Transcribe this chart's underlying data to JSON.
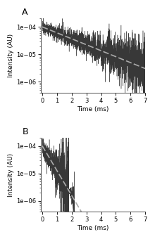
{
  "panel_A": {
    "label": "A",
    "tau_decay": 2.0,
    "tau_fit": 2.0,
    "t_max": 7.0,
    "noise_std": 0.25,
    "amplitude": 0.0001,
    "ylim": [
      4e-07,
      0.0002
    ],
    "xlim": [
      -0.1,
      7
    ],
    "xticks": [
      0,
      1,
      2,
      3,
      4,
      5,
      6,
      7
    ],
    "yticks": [
      1e-06,
      1e-05,
      0.0001
    ],
    "ylabel": "Intensity (AU)",
    "xlabel": "Time (ms)",
    "data_color": "#222222",
    "fit_color": "#aaaaaa",
    "n_points": 2000
  },
  "panel_B": {
    "label": "B",
    "tau_decay": 0.48,
    "tau_fit": 0.48,
    "t_max": 7.0,
    "noise_std": 0.35,
    "amplitude": 0.0001,
    "ylim": [
      4e-07,
      0.0002
    ],
    "xlim": [
      -0.1,
      7
    ],
    "xticks": [
      0,
      1,
      2,
      3,
      4,
      5,
      6,
      7
    ],
    "yticks": [
      1e-06,
      1e-05,
      0.0001
    ],
    "ylabel": "Intensity (AU)",
    "xlabel": "Time (ms)",
    "data_color": "#222222",
    "fit_color": "#aaaaaa",
    "n_points": 2000,
    "noise_cutoff": 2.2,
    "noise_floor": 2e-07
  },
  "background_color": "#ffffff",
  "figure_width": 2.2,
  "figure_height": 3.4,
  "dpi": 100
}
